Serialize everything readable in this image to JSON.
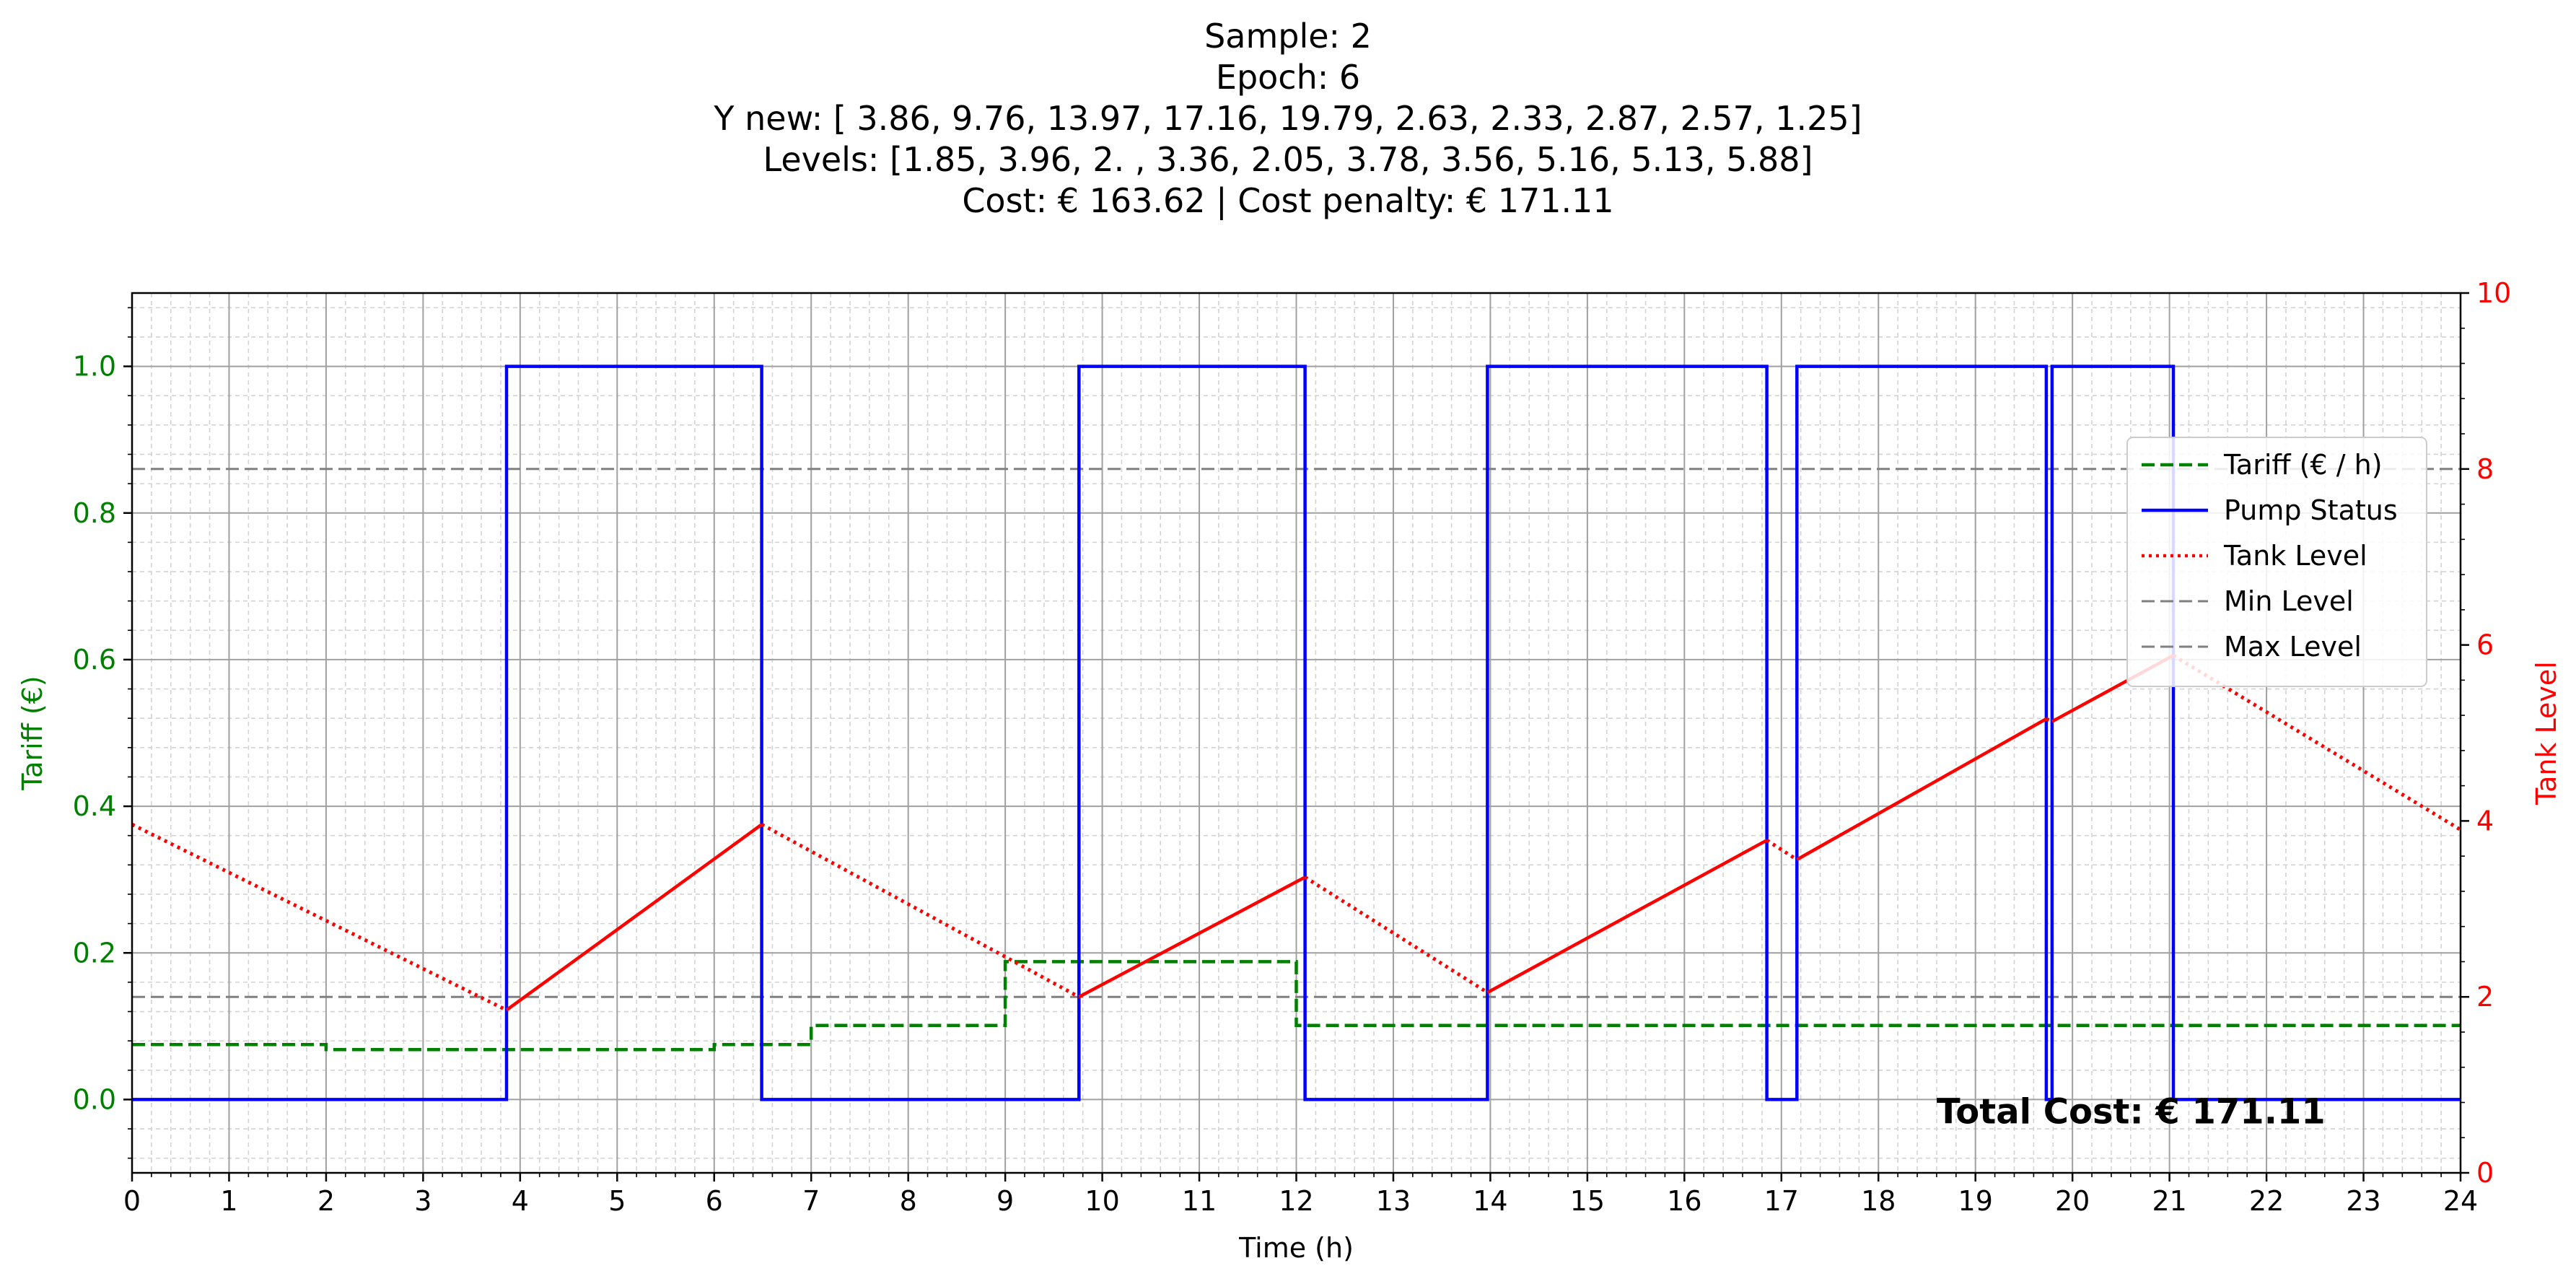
{
  "chart_data": {
    "type": "line",
    "title_lines": [
      "Sample: 2",
      "Epoch: 6",
      "Y new: [ 3.86,  9.76, 13.97, 17.16, 19.79,  2.63,  2.33,  2.87,  2.57,  1.25]",
      "Levels: [1.85, 3.96, 2.   , 3.36, 2.05, 3.78, 3.56, 5.16, 5.13, 5.88]",
      "Cost: € 163.62 | Cost penalty: € 171.11"
    ],
    "xlabel": "Time (h)",
    "ylabel": "Tariff (€)",
    "y2label": "Tank Level",
    "xlim": [
      0,
      24
    ],
    "ylim": [
      -0.1,
      1.1
    ],
    "y2lim": [
      0,
      10
    ],
    "x_ticks": [
      0,
      1,
      2,
      3,
      4,
      5,
      6,
      7,
      8,
      9,
      10,
      11,
      12,
      13,
      14,
      15,
      16,
      17,
      18,
      19,
      20,
      21,
      22,
      23,
      24
    ],
    "x_tick_labels": [
      "0",
      "1",
      "2",
      "3",
      "4",
      "5",
      "6",
      "7",
      "8",
      "9",
      "10",
      "11",
      "12",
      "13",
      "14",
      "15",
      "16",
      "17",
      "18",
      "19",
      "20",
      "21",
      "22",
      "23",
      "24"
    ],
    "y_ticks": [
      0.0,
      0.2,
      0.4,
      0.6,
      0.8,
      1.0
    ],
    "y_tick_labels": [
      "0.0",
      "0.2",
      "0.4",
      "0.6",
      "0.8",
      "1.0"
    ],
    "y2_ticks": [
      0,
      2,
      4,
      6,
      8,
      10
    ],
    "y2_tick_labels": [
      "0",
      "2",
      "4",
      "6",
      "8",
      "10"
    ],
    "grid": true,
    "minor_grid": true,
    "legend_position": "upper-right",
    "series": [
      {
        "name": "Tariff (€ / h)",
        "axis": "left",
        "color": "#008000",
        "style": "dashed",
        "x": [
          0,
          2,
          2,
          6,
          6,
          7,
          7,
          9,
          9,
          12,
          12,
          24
        ],
        "y": [
          0.075,
          0.075,
          0.068,
          0.068,
          0.075,
          0.075,
          0.101,
          0.101,
          0.188,
          0.188,
          0.101,
          0.101
        ]
      },
      {
        "name": "Pump Status",
        "axis": "left",
        "color": "#0000ff",
        "style": "solid",
        "x": [
          0,
          3.86,
          3.86,
          6.49,
          6.49,
          9.76,
          9.76,
          12.09,
          12.09,
          13.97,
          13.97,
          16.85,
          16.85,
          17.16,
          17.16,
          19.73,
          19.73,
          19.79,
          19.79,
          21.04,
          21.04,
          24
        ],
        "y": [
          0,
          0,
          1,
          1,
          0,
          0,
          1,
          1,
          0,
          0,
          1,
          1,
          0,
          0,
          1,
          1,
          0,
          0,
          1,
          1,
          0,
          0
        ]
      },
      {
        "name": "Tank Level",
        "axis": "right",
        "color": "#ff0000",
        "style": "dotted",
        "segments": [
          {
            "style": "dotted",
            "x": [
              0,
              3.86
            ],
            "y": [
              3.96,
              1.85
            ]
          },
          {
            "style": "solid",
            "x": [
              3.86,
              6.49
            ],
            "y": [
              1.85,
              3.96
            ]
          },
          {
            "style": "dotted",
            "x": [
              6.49,
              9.76
            ],
            "y": [
              3.96,
              2.0
            ]
          },
          {
            "style": "solid",
            "x": [
              9.76,
              12.09
            ],
            "y": [
              2.0,
              3.36
            ]
          },
          {
            "style": "dotted",
            "x": [
              12.09,
              13.97
            ],
            "y": [
              3.36,
              2.05
            ]
          },
          {
            "style": "solid",
            "x": [
              13.97,
              16.85
            ],
            "y": [
              2.05,
              3.78
            ]
          },
          {
            "style": "dotted",
            "x": [
              16.85,
              17.16
            ],
            "y": [
              3.78,
              3.56
            ]
          },
          {
            "style": "solid",
            "x": [
              17.16,
              19.73
            ],
            "y": [
              3.56,
              5.16
            ]
          },
          {
            "style": "dotted",
            "x": [
              19.73,
              19.79
            ],
            "y": [
              5.16,
              5.13
            ]
          },
          {
            "style": "solid",
            "x": [
              19.79,
              21.04
            ],
            "y": [
              5.13,
              5.88
            ]
          },
          {
            "style": "dotted",
            "x": [
              21.04,
              24
            ],
            "y": [
              5.88,
              3.9
            ]
          }
        ]
      },
      {
        "name": "Min Level",
        "axis": "right",
        "color": "#808080",
        "style": "dashed",
        "x": [
          0,
          24
        ],
        "y": [
          2.0,
          2.0
        ]
      },
      {
        "name": "Max Level",
        "axis": "right",
        "color": "#808080",
        "style": "dashed",
        "x": [
          0,
          24
        ],
        "y": [
          8.0,
          8.0
        ]
      }
    ],
    "annotation": "Total Cost: € 171.11",
    "annotation_position": [
      18.6,
      -0.015
    ],
    "colors": {
      "tariff_axis": "#008000",
      "tank_axis": "#ff0000",
      "pump": "#0000ff",
      "limits": "#808080"
    }
  }
}
